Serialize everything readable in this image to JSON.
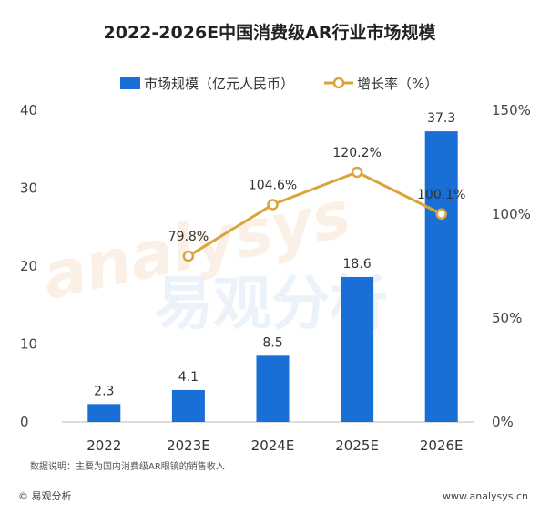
{
  "chart_data": {
    "type": "bar",
    "title": "2022-2026E中国消费级AR行业市场规模",
    "categories": [
      "2022",
      "2023E",
      "2024E",
      "2025E",
      "2026E"
    ],
    "series": [
      {
        "name": "市场规模（亿元人民币）",
        "type": "bar",
        "axis": "left",
        "values": [
          2.3,
          4.1,
          8.5,
          18.6,
          37.3
        ],
        "labels": [
          "2.3",
          "4.1",
          "8.5",
          "18.6",
          "37.3"
        ],
        "color": "#1a6fd6"
      },
      {
        "name": "增长率（%）",
        "type": "line",
        "axis": "right",
        "values": [
          null,
          79.8,
          104.6,
          120.2,
          100.1
        ],
        "labels": [
          "",
          "79.8%",
          "104.6%",
          "120.2%",
          "100.1%"
        ],
        "color": "#d9a53b"
      }
    ],
    "y_left": {
      "range": [
        0,
        40
      ],
      "ticks": [
        "0",
        "10",
        "20",
        "30",
        "40"
      ]
    },
    "y_right": {
      "range": [
        0,
        150
      ],
      "ticks": [
        "0%",
        "50%",
        "100%",
        "150%"
      ]
    },
    "legend_position": "top-center"
  },
  "note": "数据说明：主要为国内消费级AR眼镜的销售收入",
  "brand": "© 易观分析",
  "website": "www.analysys.cn",
  "watermark": "易观分析",
  "watermark_latin": "analysys"
}
